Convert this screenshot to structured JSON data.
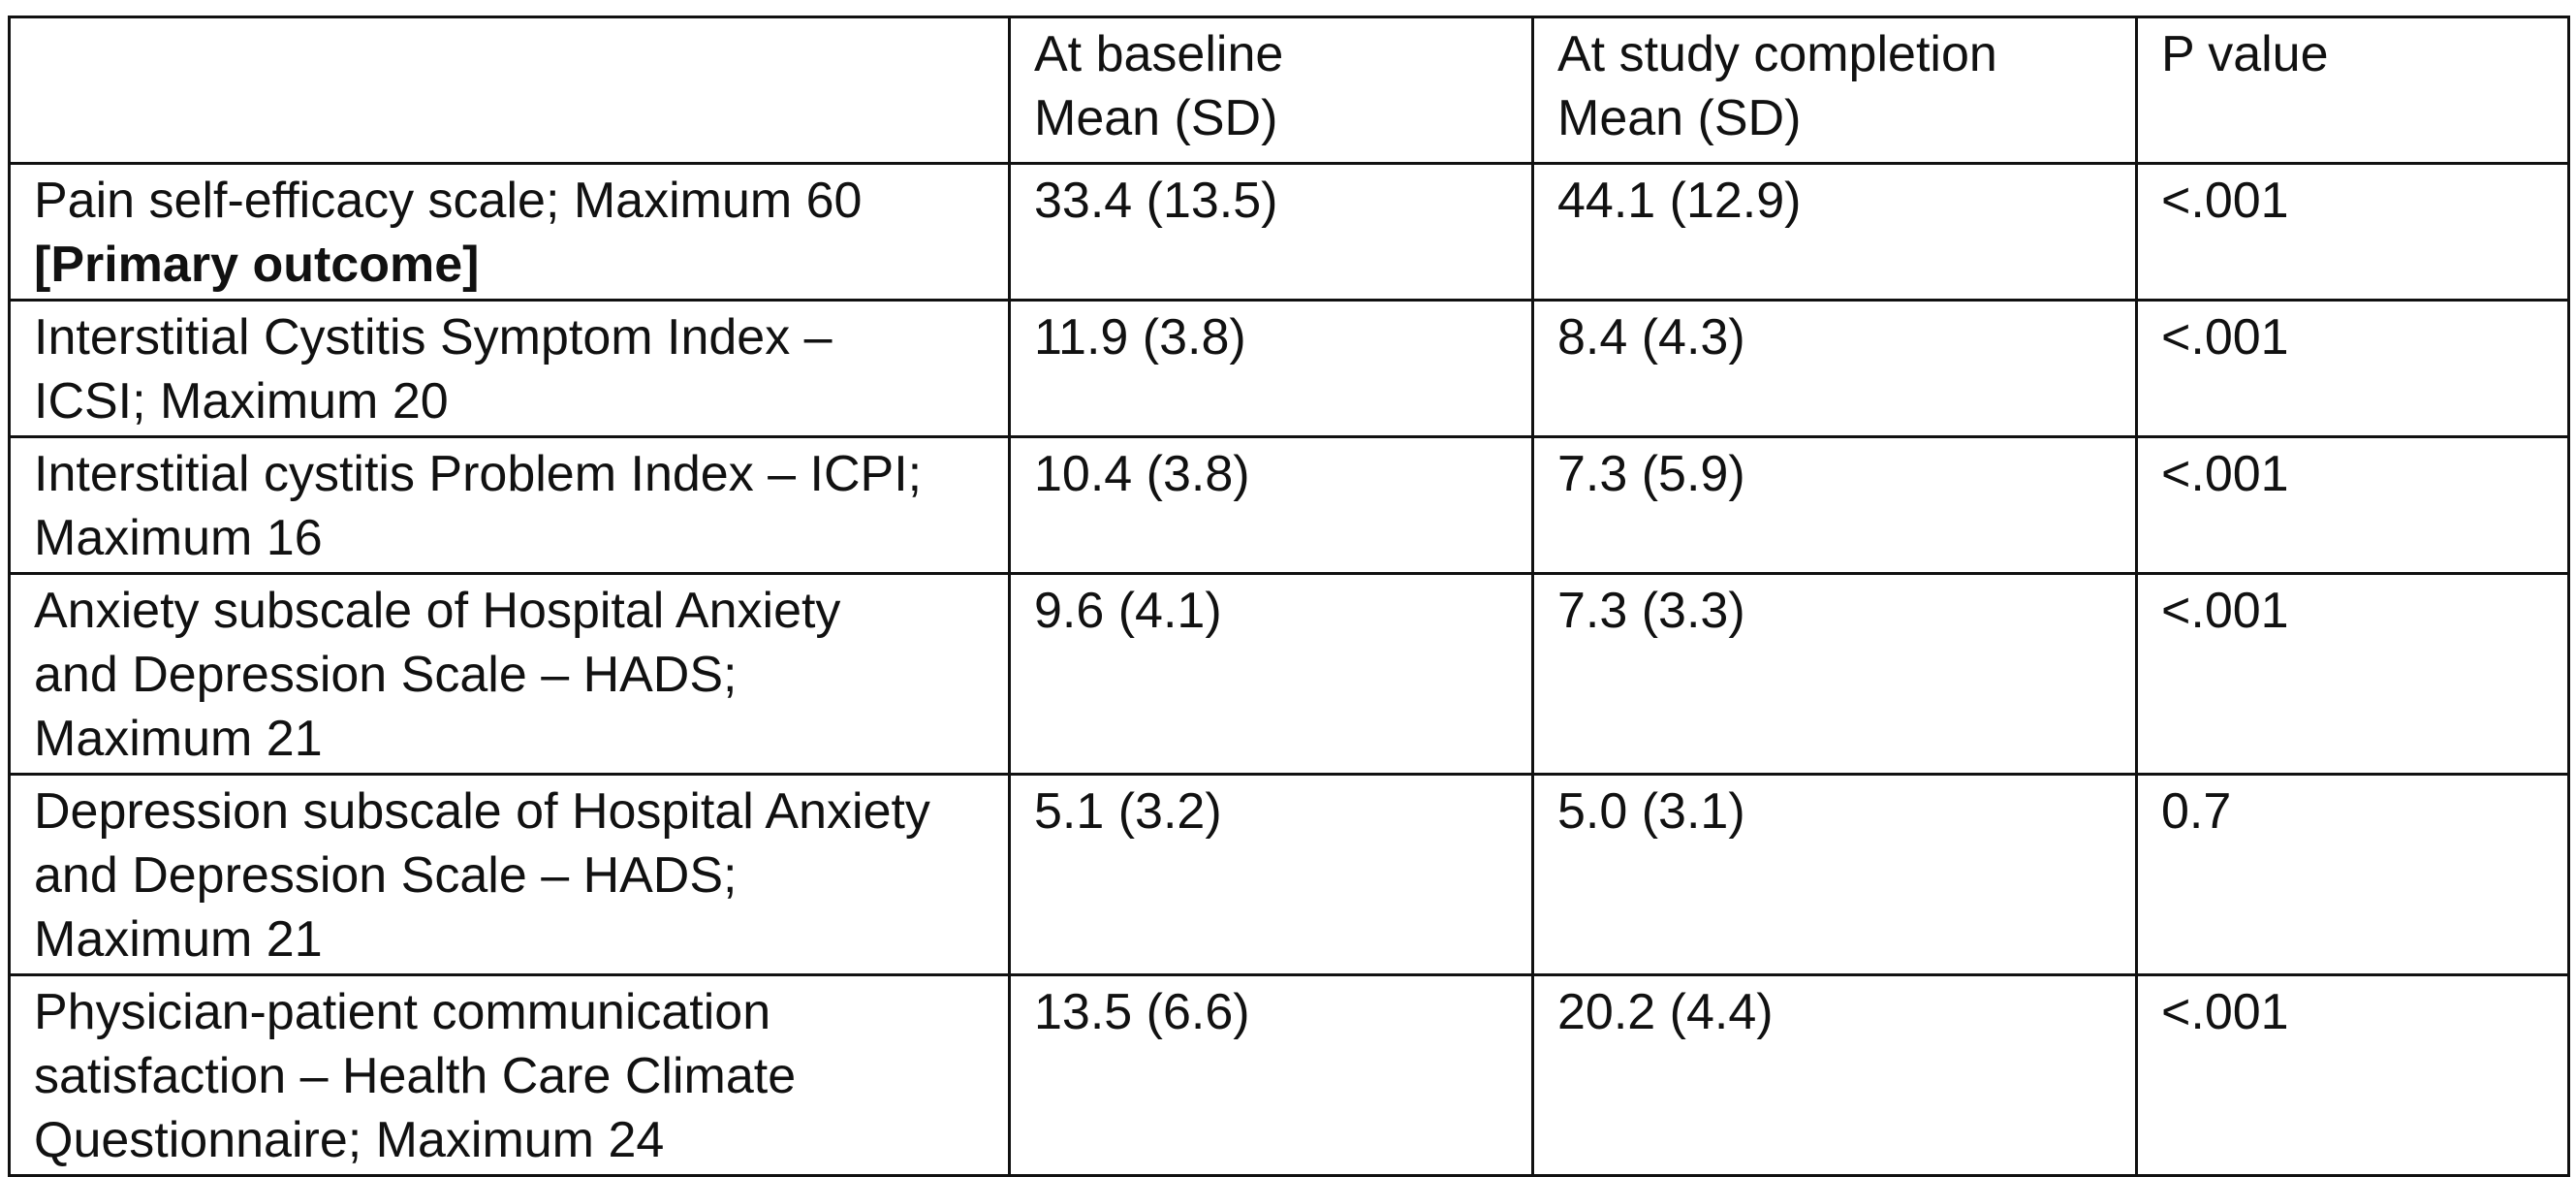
{
  "table": {
    "headers": {
      "outcome": "",
      "baseline": "At baseline\nMean (SD)",
      "completion": "At study completion\nMean (SD)",
      "p_value": "P value"
    },
    "rows": [
      {
        "outcome": "Pain self-efficacy scale; Maximum 60",
        "outcome_tag": "[Primary outcome]",
        "baseline": "33.4 (13.5)",
        "completion": "44.1 (12.9)",
        "p_value": "<.001"
      },
      {
        "outcome": "Interstitial Cystitis Symptom Index –\nICSI; Maximum 20",
        "baseline": "11.9 (3.8)",
        "completion": "8.4 (4.3)",
        "p_value": "<.001"
      },
      {
        "outcome": "Interstitial cystitis Problem Index – ICPI;\nMaximum 16",
        "baseline": "10.4 (3.8)",
        "completion": "7.3 (5.9)",
        "p_value": "<.001"
      },
      {
        "outcome": "Anxiety subscale of Hospital Anxiety\nand Depression Scale – HADS;\nMaximum 21",
        "baseline": "9.6 (4.1)",
        "completion": "7.3 (3.3)",
        "p_value": "<.001"
      },
      {
        "outcome": "Depression subscale of Hospital Anxiety\nand Depression Scale – HADS;\nMaximum 21",
        "baseline": "5.1 (3.2)",
        "completion": "5.0 (3.1)",
        "p_value": "0.7"
      },
      {
        "outcome": "Physician-patient communication\nsatisfaction – Health Care Climate\nQuestionnaire; Maximum 24",
        "baseline": "13.5 (6.6)",
        "completion": "20.2 (4.4)",
        "p_value": "<.001"
      }
    ]
  }
}
